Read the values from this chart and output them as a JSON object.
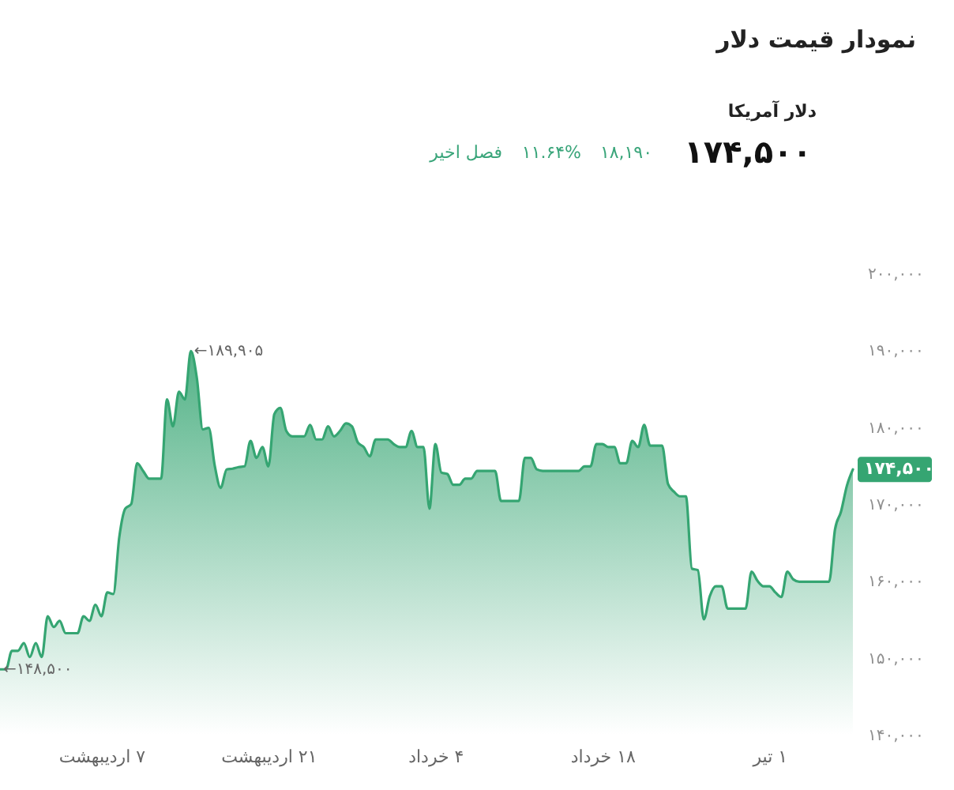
{
  "chart_data": {
    "type": "area",
    "title": "نمودار قیمت دلار",
    "subtitle": "دلار آمریکا",
    "categories": [
      null,
      null,
      null,
      null,
      null,
      null,
      null,
      null,
      null,
      null,
      null,
      null,
      null,
      null,
      null,
      null,
      null,
      "۷ اردیبهشت",
      null,
      null,
      null,
      null,
      null,
      null,
      null,
      null,
      null,
      null,
      null,
      null,
      null,
      null,
      null,
      null,
      null,
      null,
      null,
      null,
      null,
      null,
      null,
      null,
      null,
      null,
      null,
      "۲۱ اردیبهشت",
      null,
      null,
      null,
      null,
      null,
      null,
      null,
      null,
      null,
      null,
      null,
      null,
      null,
      null,
      null,
      null,
      null,
      null,
      null,
      null,
      null,
      null,
      null,
      null,
      null,
      null,
      null,
      "۴ خرداد",
      null,
      null,
      null,
      null,
      null,
      null,
      null,
      null,
      null,
      null,
      null,
      null,
      null,
      null,
      null,
      null,
      null,
      null,
      null,
      null,
      null,
      null,
      null,
      null,
      null,
      null,
      null,
      "۱۸ خرداد",
      null,
      null,
      null,
      null,
      null,
      null,
      null,
      null,
      null,
      null,
      null,
      null,
      null,
      null,
      null,
      null,
      null,
      null,
      null,
      null,
      null,
      null,
      null,
      null,
      null,
      null,
      null,
      "۱ تیر",
      null,
      null,
      null,
      null,
      null,
      null,
      null,
      null,
      null,
      null,
      null,
      null,
      null,
      null
    ],
    "series": [
      {
        "color": "#35a572",
        "values": [
          148500,
          148500,
          150900,
          150900,
          151900,
          150100,
          151900,
          150100,
          155400,
          154000,
          154800,
          153200,
          153200,
          153200,
          155400,
          154800,
          156900,
          155400,
          158500,
          158300,
          165700,
          169400,
          170000,
          175300,
          174300,
          173300,
          173300,
          173300,
          183600,
          180100,
          184600,
          183600,
          189905,
          186400,
          179700,
          179900,
          175000,
          172100,
          174500,
          174600,
          174800,
          174900,
          178200,
          176000,
          177400,
          174900,
          181700,
          182500,
          179500,
          178800,
          178800,
          178800,
          180300,
          178400,
          178400,
          180100,
          178800,
          179500,
          180500,
          180100,
          178000,
          177400,
          176200,
          178400,
          178400,
          178400,
          177800,
          177400,
          177400,
          179500,
          177400,
          177400,
          169400,
          177800,
          174100,
          173900,
          172500,
          172500,
          173300,
          173300,
          174300,
          174300,
          174300,
          174300,
          170400,
          170400,
          170400,
          170400,
          176000,
          176000,
          174500,
          174300,
          174300,
          174300,
          174300,
          174300,
          174300,
          174300,
          174900,
          174900,
          177800,
          177800,
          177400,
          177400,
          175300,
          175300,
          178200,
          177400,
          180300,
          177600,
          177600,
          177600,
          172600,
          171600,
          171000,
          171000,
          161600,
          161400,
          155000,
          158000,
          159300,
          159300,
          156400,
          156400,
          156400,
          156400,
          161200,
          160000,
          159300,
          159300,
          158500,
          157900,
          161200,
          160200,
          159900,
          159900,
          159900,
          159900,
          159900,
          159900,
          166700,
          169000,
          172400,
          174500
        ]
      }
    ],
    "ylim": [
      140000,
      200000
    ],
    "yticks": [
      {
        "value": 140000,
        "label": "۱۴۰,۰۰۰"
      },
      {
        "value": 150000,
        "label": "۱۵۰,۰۰۰"
      },
      {
        "value": 160000,
        "label": "۱۶۰,۰۰۰"
      },
      {
        "value": 170000,
        "label": "۱۷۰,۰۰۰"
      },
      {
        "value": 180000,
        "label": "۱۸۰,۰۰۰"
      },
      {
        "value": 190000,
        "label": "۱۹۰,۰۰۰"
      },
      {
        "value": 200000,
        "label": "۲۰۰,۰۰۰"
      }
    ],
    "grid": false,
    "annotations": [
      "۱۷۴,۵۰۰",
      "۱۸,۱۹۰",
      "۱۱.۶۴%",
      "فصل اخیر",
      "۱۷۴,۵۰۰",
      "←۱۸۹,۹۰۵",
      "←۱۴۸,۵۰۰"
    ]
  }
}
